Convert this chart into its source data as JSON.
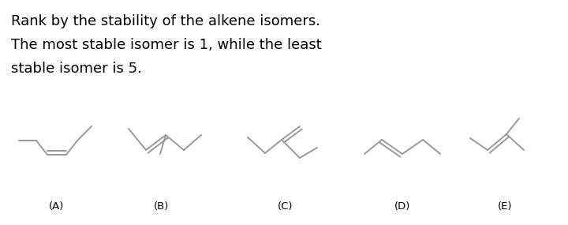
{
  "title_lines": [
    "Rank by the stability of the alkene isomers.",
    "The most stable isomer is 1, while the least",
    "stable isomer is 5."
  ],
  "labels": [
    "(A)",
    "(B)",
    "(C)",
    "(D)",
    "(E)"
  ],
  "bg_color": "#ffffff",
  "line_color": "#999999",
  "text_color": "#000000",
  "title_fontsize": 13.0,
  "label_fontsize": 9.5
}
